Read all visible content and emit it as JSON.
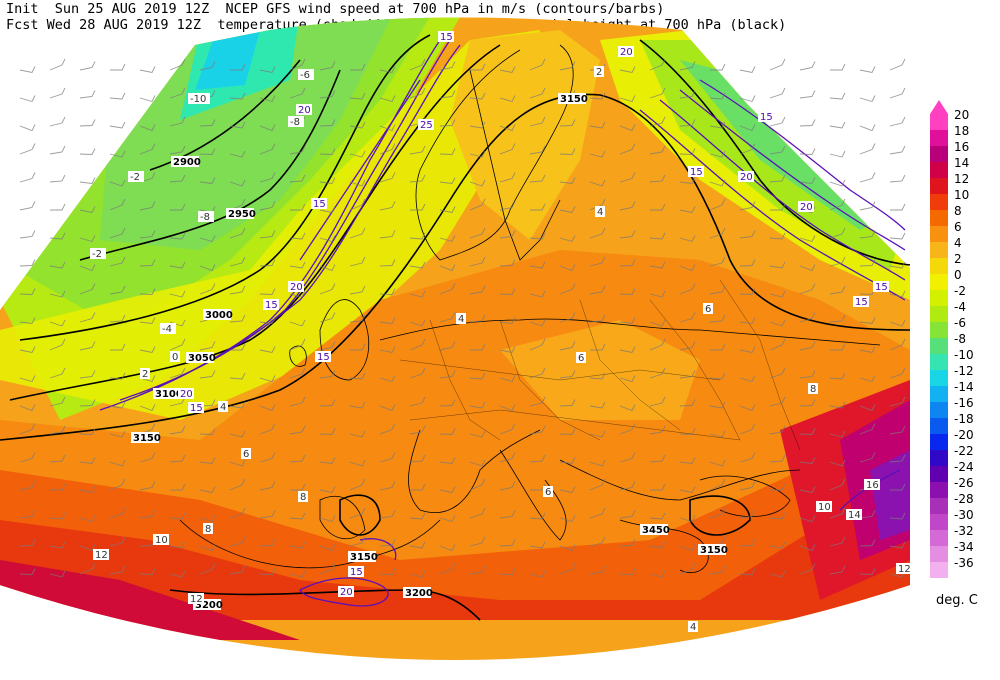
{
  "header": {
    "line1": "Init  Sun 25 AUG 2019 12Z  NCEP GFS wind speed at 700 hPa in m/s (contours/barbs)",
    "line2": "Fcst Wed 28 AUG 2019 12Z  temperature (shaded/dotted) and geopotential height at 700 hPa (black)"
  },
  "legend": {
    "unit": "deg. C",
    "levels": [
      "20",
      "18",
      "16",
      "14",
      "12",
      "10",
      "8",
      "6",
      "4",
      "2",
      "0",
      "-2",
      "-4",
      "-6",
      "-8",
      "-10",
      "-12",
      "-14",
      "-16",
      "-18",
      "-20",
      "-22",
      "-24",
      "-26",
      "-28",
      "-30",
      "-32",
      "-34",
      "-36"
    ],
    "colors": [
      "#ff40c0",
      "#e0109a",
      "#b8007a",
      "#d00048",
      "#e0141c",
      "#f03c0a",
      "#f56a00",
      "#f89010",
      "#f7b51a",
      "#f5d80a",
      "#f0f000",
      "#d2f000",
      "#b0ea10",
      "#86e436",
      "#56e07a",
      "#36e4b2",
      "#18d6e6",
      "#12b2f2",
      "#0e86f2",
      "#0a5af0",
      "#0828f0",
      "#3008c8",
      "#6000b0",
      "#8c10b0",
      "#a830b8",
      "#c048c8",
      "#d46ad6",
      "#e48ee2",
      "#f2b0ee"
    ]
  },
  "height_labels": [
    "3150",
    "2900",
    "2950",
    "3000",
    "3050",
    "3100",
    "3150",
    "3150",
    "3450",
    "3150",
    "3200",
    "3200"
  ],
  "wind_labels": [
    "15",
    "20",
    "25",
    "15",
    "20",
    "15",
    "15",
    "20",
    "15",
    "15",
    "20",
    "15",
    "15",
    "20",
    "15",
    "20",
    "15",
    "20"
  ],
  "temp_labels": [
    "-10",
    "-8",
    "-8",
    "-6",
    "-4",
    "-2",
    "-2",
    "0",
    "2",
    "4",
    "4",
    "6",
    "6",
    "8",
    "8",
    "8",
    "10",
    "10",
    "12",
    "12",
    "12",
    "14",
    "16",
    "6",
    "6",
    "4",
    "4",
    "2"
  ]
}
